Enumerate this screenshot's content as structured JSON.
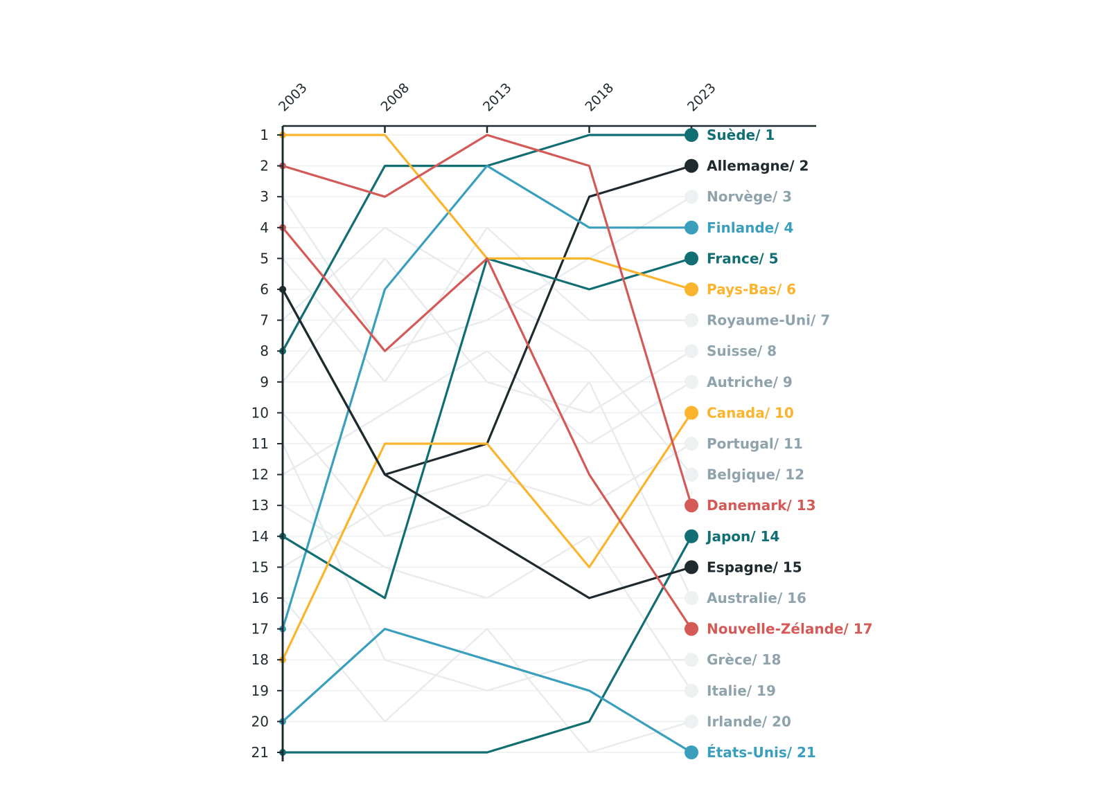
{
  "chart_data": {
    "type": "line",
    "title": "",
    "xlabel": "",
    "ylabel": "",
    "x": [
      "2003",
      "2008",
      "2013",
      "2018",
      "2023"
    ],
    "ylim": [
      1,
      21
    ],
    "y_ticks": [
      1,
      2,
      3,
      4,
      5,
      6,
      7,
      8,
      9,
      10,
      11,
      12,
      13,
      14,
      15,
      16,
      17,
      18,
      19,
      20,
      21
    ],
    "y_inverted": true,
    "grid": true,
    "label_separator": "/ ",
    "colors": {
      "teal": "#116e72",
      "black": "#1f2a2e",
      "blue": "#3a9fbc",
      "yellow": "#fbb42e",
      "red": "#d45a57",
      "grey_line": "#e9ecee",
      "grey_dot": "#eef1f2",
      "grey_text": "#8fa3ad",
      "axis": "#1f2a2e"
    },
    "series": [
      {
        "name": "Suède",
        "rank": "1",
        "color": "teal",
        "highlight": true,
        "values": [
          8,
          2,
          2,
          1,
          1
        ]
      },
      {
        "name": "Allemagne",
        "rank": "2",
        "color": "black",
        "highlight": true,
        "values": [
          6,
          12,
          11,
          3,
          2
        ]
      },
      {
        "name": "Norvège",
        "rank": "3",
        "color": "grey",
        "highlight": false,
        "values": [
          3,
          8,
          7,
          5,
          3
        ]
      },
      {
        "name": "Finlande",
        "rank": "4",
        "color": "blue",
        "highlight": true,
        "values": [
          17,
          6,
          2,
          4,
          4
        ]
      },
      {
        "name": "France",
        "rank": "5",
        "color": "teal",
        "highlight": true,
        "values": [
          14,
          16,
          5,
          6,
          5
        ]
      },
      {
        "name": "Pays-Bas",
        "rank": "6",
        "color": "yellow",
        "highlight": true,
        "values": [
          1,
          1,
          5,
          5,
          6
        ]
      },
      {
        "name": "Royaume-Uni",
        "rank": "7",
        "color": "grey",
        "highlight": false,
        "values": [
          5,
          9,
          4,
          7,
          7
        ]
      },
      {
        "name": "Suisse",
        "rank": "8",
        "color": "grey",
        "highlight": false,
        "values": [
          9,
          5,
          9,
          10,
          8
        ]
      },
      {
        "name": "Autriche",
        "rank": "9",
        "color": "grey",
        "highlight": false,
        "values": [
          12,
          10,
          8,
          11,
          9
        ]
      },
      {
        "name": "Canada",
        "rank": "10",
        "color": "yellow",
        "highlight": true,
        "values": [
          18,
          11,
          11,
          15,
          10
        ]
      },
      {
        "name": "Portugal",
        "rank": "11",
        "color": "grey",
        "highlight": false,
        "values": [
          15,
          13,
          12,
          13,
          11
        ]
      },
      {
        "name": "Belgique",
        "rank": "12",
        "color": "grey",
        "highlight": false,
        "values": [
          7,
          4,
          6,
          8,
          12
        ]
      },
      {
        "name": "Danemark",
        "rank": "13",
        "color": "red",
        "highlight": true,
        "values": [
          2,
          3,
          1,
          2,
          13
        ]
      },
      {
        "name": "Japon",
        "rank": "14",
        "color": "teal",
        "highlight": true,
        "values": [
          21,
          21,
          21,
          20,
          14
        ]
      },
      {
        "name": "Espagne",
        "rank": "15",
        "color": "black",
        "highlight": true,
        "values": [
          6,
          12,
          14,
          16,
          15
        ]
      },
      {
        "name": "Australie",
        "rank": "16",
        "color": "grey",
        "highlight": false,
        "values": [
          10,
          14,
          13,
          9,
          16
        ]
      },
      {
        "name": "Nouvelle-Zélande",
        "rank": "17",
        "color": "red",
        "highlight": true,
        "values": [
          4,
          8,
          5,
          12,
          17
        ]
      },
      {
        "name": "Grèce",
        "rank": "18",
        "color": "grey",
        "highlight": false,
        "values": [
          11,
          18,
          19,
          18,
          18
        ]
      },
      {
        "name": "Italie",
        "rank": "19",
        "color": "grey",
        "highlight": false,
        "values": [
          13,
          15,
          16,
          14,
          19
        ]
      },
      {
        "name": "Irlande",
        "rank": "20",
        "color": "grey",
        "highlight": false,
        "values": [
          16,
          20,
          17,
          21,
          20
        ]
      },
      {
        "name": "États-Unis",
        "rank": "21",
        "color": "blue",
        "highlight": true,
        "values": [
          20,
          17,
          18,
          19,
          21
        ]
      }
    ]
  }
}
